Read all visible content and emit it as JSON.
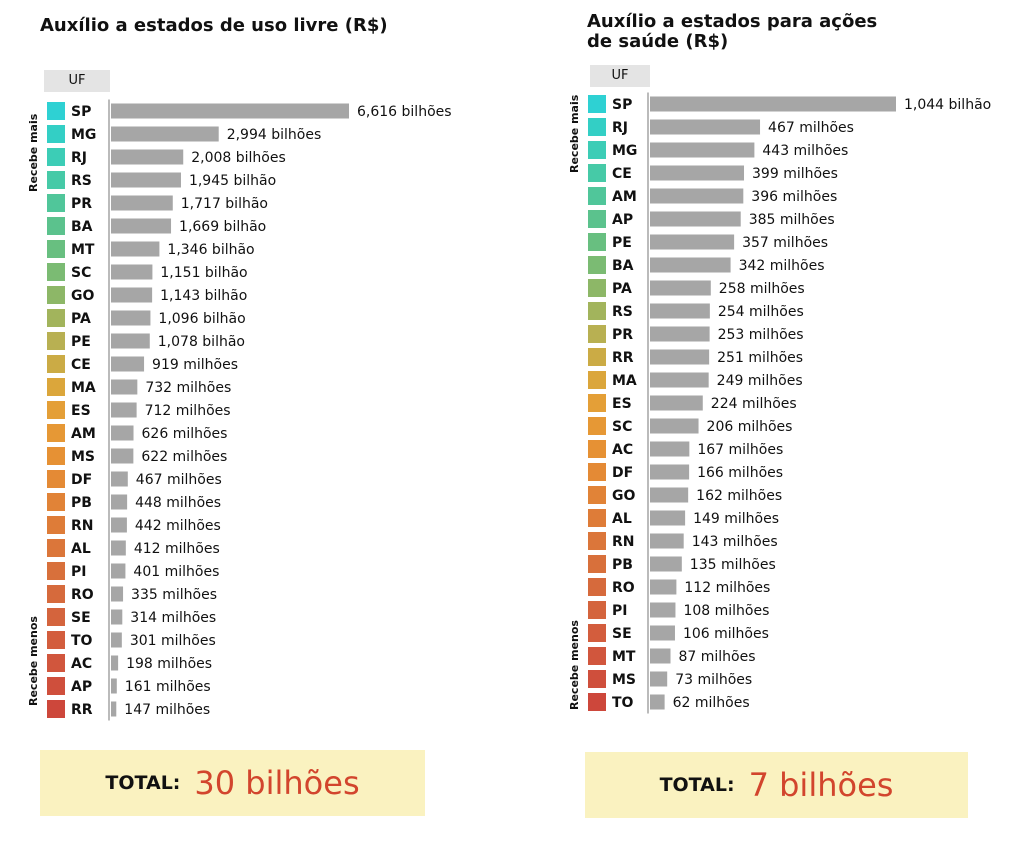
{
  "chart_data": [
    {
      "type": "bar",
      "title": "Auxílio a estados de uso livre (R$)",
      "category_header": "UF",
      "top_label": "Recebe mais",
      "bottom_label": "Recebe menos",
      "total_label": "TOTAL:",
      "total_value": "30 bilhões",
      "unit": "bilhões de R$",
      "rows": [
        {
          "uf": "SP",
          "value": 6.616,
          "label": "6,616 bilhões",
          "color": "#2ed1d3"
        },
        {
          "uf": "MG",
          "value": 2.994,
          "label": "2,994 bilhões",
          "color": "#33cfc5"
        },
        {
          "uf": "RJ",
          "value": 2.008,
          "label": "2,008 bilhões",
          "color": "#3ccdb6"
        },
        {
          "uf": "RS",
          "value": 1.945,
          "label": "1,945 bilhão",
          "color": "#46caa7"
        },
        {
          "uf": "PR",
          "value": 1.717,
          "label": "1,717 bilhão",
          "color": "#50c69a"
        },
        {
          "uf": "BA",
          "value": 1.669,
          "label": "1,669 bilhão",
          "color": "#5bc28d"
        },
        {
          "uf": "MT",
          "value": 1.346,
          "label": "1,346 bilhão",
          "color": "#68bf80"
        },
        {
          "uf": "SC",
          "value": 1.151,
          "label": "1,151 bilhão",
          "color": "#7bbb73"
        },
        {
          "uf": "GO",
          "value": 1.143,
          "label": "1,143 bilhão",
          "color": "#8db767"
        },
        {
          "uf": "PA",
          "value": 1.096,
          "label": "1,096 bilhão",
          "color": "#a2b45c"
        },
        {
          "uf": "PE",
          "value": 1.078,
          "label": "1,078 bilhão",
          "color": "#b8b052"
        },
        {
          "uf": "CE",
          "value": 0.919,
          "label": "919 milhões",
          "color": "#cbab45"
        },
        {
          "uf": "MA",
          "value": 0.732,
          "label": "732 milhões",
          "color": "#dba63b"
        },
        {
          "uf": "ES",
          "value": 0.712,
          "label": "712 milhões",
          "color": "#e49f37"
        },
        {
          "uf": "AM",
          "value": 0.626,
          "label": "626 milhões",
          "color": "#e69835"
        },
        {
          "uf": "MS",
          "value": 0.622,
          "label": "622 milhões",
          "color": "#e69134"
        },
        {
          "uf": "DF",
          "value": 0.467,
          "label": "467 milhões",
          "color": "#e48a35"
        },
        {
          "uf": "PB",
          "value": 0.448,
          "label": "448 milhões",
          "color": "#e18337"
        },
        {
          "uf": "RN",
          "value": 0.442,
          "label": "442 milhões",
          "color": "#de7c38"
        },
        {
          "uf": "AL",
          "value": 0.412,
          "label": "412 milhões",
          "color": "#db763a"
        },
        {
          "uf": "PI",
          "value": 0.401,
          "label": "401 milhões",
          "color": "#d8703b"
        },
        {
          "uf": "RO",
          "value": 0.335,
          "label": "335 milhões",
          "color": "#d66a3c"
        },
        {
          "uf": "SE",
          "value": 0.314,
          "label": "314 milhões",
          "color": "#d4643d"
        },
        {
          "uf": "TO",
          "value": 0.301,
          "label": "301 milhões",
          "color": "#d35d3d"
        },
        {
          "uf": "AC",
          "value": 0.198,
          "label": "198 milhões",
          "color": "#d1563d"
        },
        {
          "uf": "AP",
          "value": 0.161,
          "label": "161 milhões",
          "color": "#cf4f3c"
        },
        {
          "uf": "RR",
          "value": 0.147,
          "label": "147 milhões",
          "color": "#cd473b"
        }
      ]
    },
    {
      "type": "bar",
      "title": "Auxílio a estados para ações\nde saúde (R$)",
      "category_header": "UF",
      "top_label": "Recebe mais",
      "bottom_label": "Recebe menos",
      "total_label": "TOTAL:",
      "total_value": "7 bilhões",
      "unit": "milhões de R$",
      "rows": [
        {
          "uf": "SP",
          "value": 1044,
          "label": "1,044 bilhão",
          "color": "#2ed1d3"
        },
        {
          "uf": "RJ",
          "value": 467,
          "label": "467 milhões",
          "color": "#33cfc5"
        },
        {
          "uf": "MG",
          "value": 443,
          "label": "443 milhões",
          "color": "#3ccdb6"
        },
        {
          "uf": "CE",
          "value": 399,
          "label": "399 milhões",
          "color": "#46caa7"
        },
        {
          "uf": "AM",
          "value": 396,
          "label": "396 milhões",
          "color": "#50c69a"
        },
        {
          "uf": "AP",
          "value": 385,
          "label": "385 milhões",
          "color": "#5bc28d"
        },
        {
          "uf": "PE",
          "value": 357,
          "label": "357 milhões",
          "color": "#68bf80"
        },
        {
          "uf": "BA",
          "value": 342,
          "label": "342 milhões",
          "color": "#7bbb73"
        },
        {
          "uf": "PA",
          "value": 258,
          "label": "258 milhões",
          "color": "#8db767"
        },
        {
          "uf": "RS",
          "value": 254,
          "label": "254 milhões",
          "color": "#a2b45c"
        },
        {
          "uf": "PR",
          "value": 253,
          "label": "253 milhões",
          "color": "#b8b052"
        },
        {
          "uf": "RR",
          "value": 251,
          "label": "251 milhões",
          "color": "#cbab45"
        },
        {
          "uf": "MA",
          "value": 249,
          "label": "249 milhões",
          "color": "#dba63b"
        },
        {
          "uf": "ES",
          "value": 224,
          "label": "224 milhões",
          "color": "#e49f37"
        },
        {
          "uf": "SC",
          "value": 206,
          "label": "206 milhões",
          "color": "#e69835"
        },
        {
          "uf": "AC",
          "value": 167,
          "label": "167 milhões",
          "color": "#e69134"
        },
        {
          "uf": "DF",
          "value": 166,
          "label": "166 milhões",
          "color": "#e48a35"
        },
        {
          "uf": "GO",
          "value": 162,
          "label": "162 milhões",
          "color": "#e18337"
        },
        {
          "uf": "AL",
          "value": 149,
          "label": "149 milhões",
          "color": "#de7c38"
        },
        {
          "uf": "RN",
          "value": 143,
          "label": "143 milhões",
          "color": "#db763a"
        },
        {
          "uf": "PB",
          "value": 135,
          "label": "135 milhões",
          "color": "#d8703b"
        },
        {
          "uf": "RO",
          "value": 112,
          "label": "112 milhões",
          "color": "#d66a3c"
        },
        {
          "uf": "PI",
          "value": 108,
          "label": "108 milhões",
          "color": "#d4643d"
        },
        {
          "uf": "SE",
          "value": 106,
          "label": "106 milhões",
          "color": "#d35d3d"
        },
        {
          "uf": "MT",
          "value": 87,
          "label": "87 milhões",
          "color": "#d1563d"
        },
        {
          "uf": "MS",
          "value": 73,
          "label": "73 milhões",
          "color": "#cf4f3c"
        },
        {
          "uf": "TO",
          "value": 62,
          "label": "62 milhões",
          "color": "#cd473b"
        }
      ]
    }
  ]
}
